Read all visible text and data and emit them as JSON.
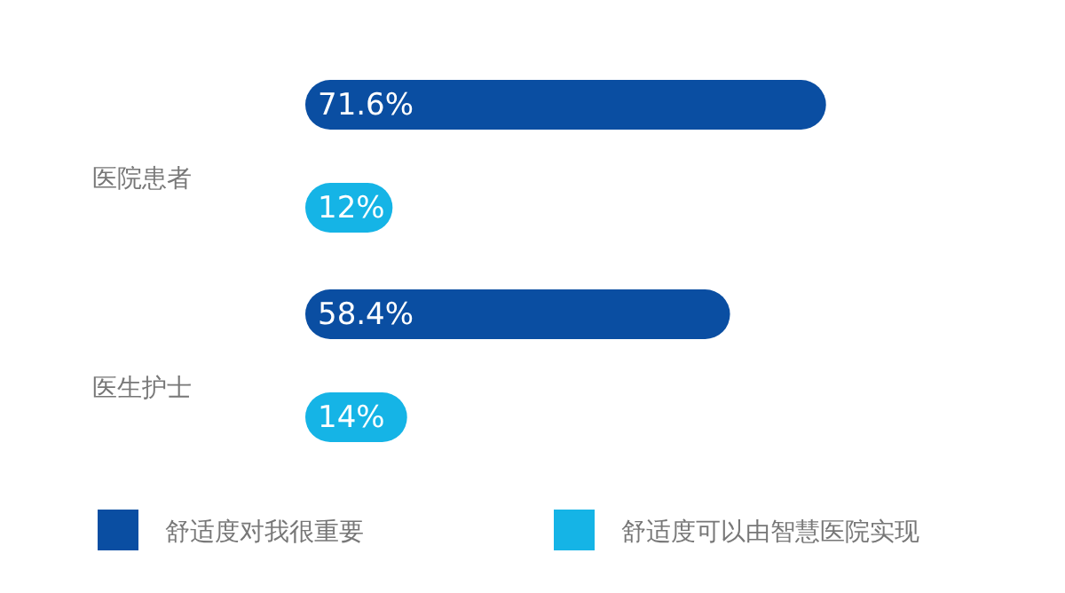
{
  "chart_data": {
    "type": "bar",
    "orientation": "horizontal",
    "categories": [
      "医院患者",
      "医生护士"
    ],
    "series": [
      {
        "name": "舒适度对我很重要",
        "color": "#0a4ea2",
        "values": [
          71.6,
          58.4
        ],
        "value_labels": [
          "71.6%",
          "58.4%"
        ]
      },
      {
        "name": "舒适度可以由智慧医院实现",
        "color": "#15b4e6",
        "values": [
          12,
          14
        ],
        "value_labels": [
          "12%",
          "14%"
        ]
      }
    ],
    "legend": "bottom"
  }
}
